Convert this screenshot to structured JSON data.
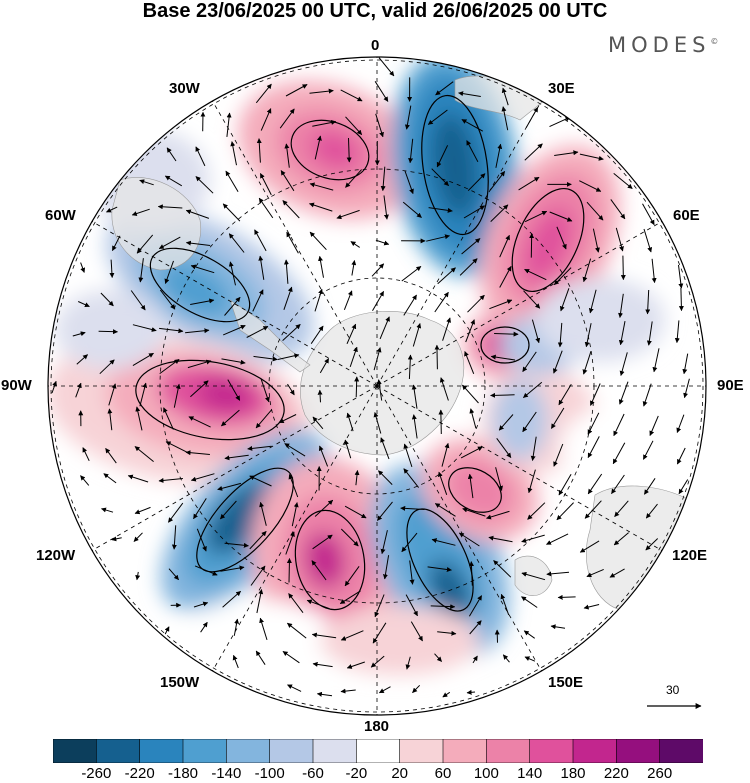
{
  "title": "Base 23/06/2025 00 UTC, valid 26/06/2025 00 UTC",
  "brand": "MODES",
  "brand_mark": "©",
  "longitude_labels": {
    "n0": "0",
    "n30e": "30E",
    "n60e": "60E",
    "n90e": "90E",
    "n120e": "120E",
    "n150e": "150E",
    "n180": "180",
    "n150w": "150W",
    "n120w": "120W",
    "n90w": "90W",
    "n60w": "60W",
    "n30w": "30W"
  },
  "reference_vector": {
    "label": "30"
  },
  "colorbar": {
    "labels": [
      "-260",
      "-220",
      "-180",
      "-140",
      "-100",
      "-60",
      "-20",
      "20",
      "60",
      "100",
      "140",
      "180",
      "220",
      "260"
    ],
    "colors": [
      "#0c3e5c",
      "#15608f",
      "#2a84bd",
      "#4f9fd0",
      "#83b5de",
      "#b4c8e6",
      "#dcdfee",
      "#ffffff",
      "#f7d3d7",
      "#f4acbb",
      "#ec82a8",
      "#e0519c",
      "#c2268e",
      "#950f7e",
      "#5e0a68"
    ]
  },
  "colors": {
    "land": "#e6e6e6",
    "contour": "#000000",
    "grid": "#000000"
  }
}
